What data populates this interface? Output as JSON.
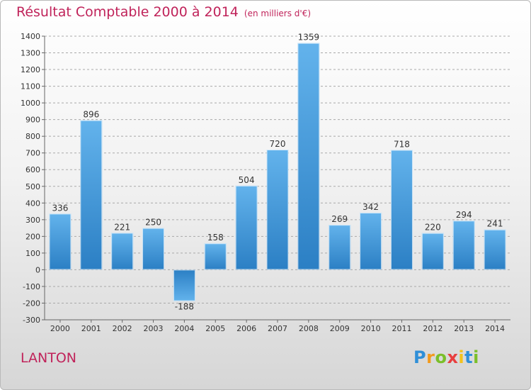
{
  "title": "Résultat Comptable 2000 à 2014",
  "subtitle": "(en milliers d'€)",
  "city": "LANTON",
  "logo": {
    "letters": [
      "P",
      "r",
      "o",
      "x",
      "i",
      "t",
      "i"
    ],
    "colors": [
      "#2f8fd8",
      "#f29a1d",
      "#7bbf2a",
      "#e83f3f",
      "#f2c21d",
      "#2f8fd8",
      "#7bbf2a"
    ]
  },
  "chart_data": {
    "type": "bar",
    "categories": [
      "2000",
      "2001",
      "2002",
      "2003",
      "2004",
      "2005",
      "2006",
      "2007",
      "2008",
      "2009",
      "2010",
      "2011",
      "2012",
      "2013",
      "2014"
    ],
    "values": [
      336,
      896,
      221,
      250,
      -188,
      158,
      504,
      720,
      1359,
      269,
      342,
      718,
      220,
      294,
      241
    ],
    "data_labels": [
      "336",
      "896",
      "221",
      "250",
      "-188",
      "158",
      "504",
      "720",
      "1359",
      "269",
      "342",
      "718",
      "220",
      "294",
      "241"
    ],
    "ylim": [
      -300,
      1400
    ],
    "yticks": [
      -300,
      -200,
      -100,
      0,
      100,
      200,
      300,
      400,
      500,
      600,
      700,
      800,
      900,
      1000,
      1100,
      1200,
      1300,
      1400
    ],
    "ytick_labels": [
      "-300",
      "-200",
      "-100",
      "0",
      "100",
      "200",
      "300",
      "400",
      "500",
      "600",
      "700",
      "800",
      "900",
      "1000",
      "1100",
      "1200",
      "1300",
      "1400"
    ],
    "grid": "horizontal dashed",
    "bar_color": "#3d93d6",
    "xlabel": "",
    "ylabel": ""
  }
}
